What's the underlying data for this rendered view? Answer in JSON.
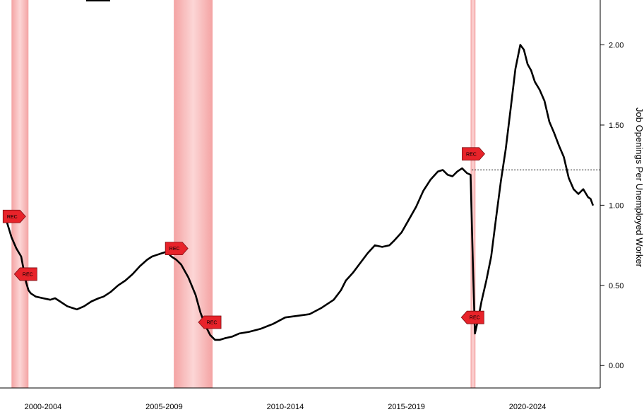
{
  "chart_data": {
    "type": "line",
    "title": "",
    "xlabel": "",
    "ylabel": "Job Openings Per Unemployed Worker",
    "x_tick_labels": [
      "2000-2004",
      "2005-2009",
      "2010-2014",
      "2015-2019",
      "2020-2024"
    ],
    "x_tick_years": [
      2002.5,
      2007.5,
      2012.5,
      2017.5,
      2022.5
    ],
    "xlim": [
      2000.9,
      2025.5
    ],
    "ylim": [
      -0.14,
      2.28
    ],
    "y_ticks": [
      0.0,
      0.5,
      1.0,
      1.5,
      2.0
    ],
    "y_tick_labels": [
      "0.00",
      "0.50",
      "1.00",
      "1.50",
      "2.00"
    ],
    "y_axis_side": "right",
    "grid": false,
    "reference_line": {
      "y": 1.22,
      "style": "dotted",
      "from_x": 2020.2
    },
    "recessions": [
      {
        "start": 2001.2,
        "end": 2001.9
      },
      {
        "start": 2007.9,
        "end": 2009.5
      },
      {
        "start": 2020.15,
        "end": 2020.35
      }
    ],
    "rec_label": "REC",
    "rec_markers": [
      {
        "x": 2001.2,
        "y": 0.93,
        "dir": "right"
      },
      {
        "x": 2001.9,
        "y": 0.57,
        "dir": "left"
      },
      {
        "x": 2007.9,
        "y": 0.73,
        "dir": "right"
      },
      {
        "x": 2009.5,
        "y": 0.27,
        "dir": "left"
      },
      {
        "x": 2020.15,
        "y": 1.32,
        "dir": "right"
      },
      {
        "x": 2020.35,
        "y": 0.3,
        "dir": "left"
      }
    ],
    "series": [
      {
        "color": "#000000",
        "points": [
          [
            2001.0,
            0.9
          ],
          [
            2001.2,
            0.8
          ],
          [
            2001.4,
            0.73
          ],
          [
            2001.6,
            0.68
          ],
          [
            2001.7,
            0.6
          ],
          [
            2001.8,
            0.52
          ],
          [
            2001.9,
            0.47
          ],
          [
            2002.0,
            0.45
          ],
          [
            2002.2,
            0.43
          ],
          [
            2002.5,
            0.42
          ],
          [
            2002.8,
            0.41
          ],
          [
            2003.0,
            0.42
          ],
          [
            2003.2,
            0.4
          ],
          [
            2003.5,
            0.37
          ],
          [
            2003.7,
            0.36
          ],
          [
            2003.9,
            0.35
          ],
          [
            2004.2,
            0.37
          ],
          [
            2004.5,
            0.4
          ],
          [
            2004.8,
            0.42
          ],
          [
            2005.0,
            0.43
          ],
          [
            2005.3,
            0.46
          ],
          [
            2005.6,
            0.5
          ],
          [
            2005.9,
            0.53
          ],
          [
            2006.2,
            0.57
          ],
          [
            2006.5,
            0.62
          ],
          [
            2006.8,
            0.66
          ],
          [
            2007.0,
            0.68
          ],
          [
            2007.2,
            0.69
          ],
          [
            2007.4,
            0.7
          ],
          [
            2007.6,
            0.71
          ],
          [
            2007.8,
            0.68
          ],
          [
            2008.0,
            0.66
          ],
          [
            2008.2,
            0.63
          ],
          [
            2008.5,
            0.55
          ],
          [
            2008.8,
            0.44
          ],
          [
            2009.0,
            0.33
          ],
          [
            2009.2,
            0.25
          ],
          [
            2009.4,
            0.19
          ],
          [
            2009.6,
            0.16
          ],
          [
            2009.8,
            0.16
          ],
          [
            2010.0,
            0.17
          ],
          [
            2010.3,
            0.18
          ],
          [
            2010.6,
            0.2
          ],
          [
            2011.0,
            0.21
          ],
          [
            2011.5,
            0.23
          ],
          [
            2012.0,
            0.26
          ],
          [
            2012.5,
            0.3
          ],
          [
            2013.0,
            0.31
          ],
          [
            2013.5,
            0.32
          ],
          [
            2014.0,
            0.36
          ],
          [
            2014.5,
            0.41
          ],
          [
            2014.8,
            0.47
          ],
          [
            2015.0,
            0.53
          ],
          [
            2015.3,
            0.58
          ],
          [
            2015.6,
            0.64
          ],
          [
            2015.9,
            0.7
          ],
          [
            2016.2,
            0.75
          ],
          [
            2016.5,
            0.74
          ],
          [
            2016.8,
            0.75
          ],
          [
            2017.0,
            0.78
          ],
          [
            2017.3,
            0.83
          ],
          [
            2017.6,
            0.91
          ],
          [
            2017.9,
            0.99
          ],
          [
            2018.2,
            1.09
          ],
          [
            2018.5,
            1.16
          ],
          [
            2018.8,
            1.21
          ],
          [
            2019.0,
            1.22
          ],
          [
            2019.2,
            1.19
          ],
          [
            2019.4,
            1.18
          ],
          [
            2019.6,
            1.21
          ],
          [
            2019.8,
            1.23
          ],
          [
            2020.0,
            1.2
          ],
          [
            2020.15,
            1.19
          ],
          [
            2020.25,
            0.6
          ],
          [
            2020.33,
            0.2
          ],
          [
            2020.45,
            0.28
          ],
          [
            2020.6,
            0.4
          ],
          [
            2020.8,
            0.53
          ],
          [
            2021.0,
            0.68
          ],
          [
            2021.2,
            0.92
          ],
          [
            2021.4,
            1.15
          ],
          [
            2021.6,
            1.35
          ],
          [
            2021.8,
            1.6
          ],
          [
            2022.0,
            1.85
          ],
          [
            2022.2,
            2.0
          ],
          [
            2022.35,
            1.97
          ],
          [
            2022.5,
            1.88
          ],
          [
            2022.65,
            1.84
          ],
          [
            2022.8,
            1.77
          ],
          [
            2023.0,
            1.72
          ],
          [
            2023.2,
            1.65
          ],
          [
            2023.4,
            1.52
          ],
          [
            2023.6,
            1.45
          ],
          [
            2023.8,
            1.37
          ],
          [
            2024.0,
            1.3
          ],
          [
            2024.2,
            1.17
          ],
          [
            2024.4,
            1.1
          ],
          [
            2024.6,
            1.07
          ],
          [
            2024.8,
            1.1
          ],
          [
            2025.0,
            1.05
          ],
          [
            2025.1,
            1.04
          ],
          [
            2025.2,
            1.0
          ]
        ]
      }
    ]
  }
}
